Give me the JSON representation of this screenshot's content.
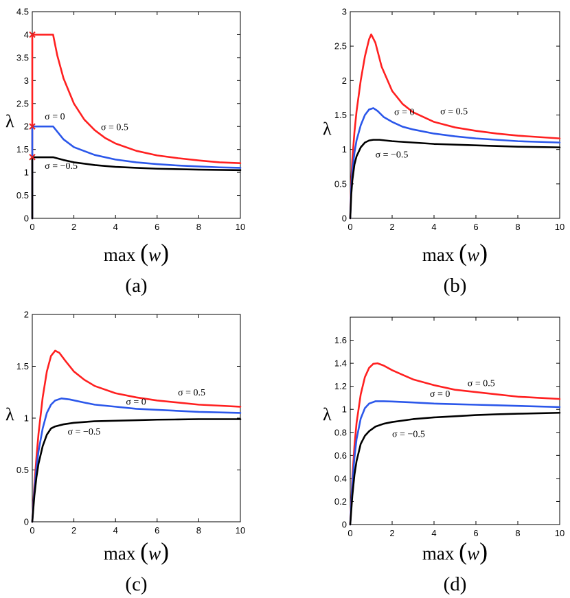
{
  "figure": {
    "xlabel_main": "max",
    "xlabel_var": "w",
    "xlabel_open": "(",
    "xlabel_close": ")",
    "ylabel": "λ"
  },
  "colors": {
    "sigma_pos": "#ff2020",
    "sigma_zero": "#2b57ea",
    "sigma_neg": "#000000",
    "marker": "#e82020"
  },
  "chart_data": [
    {
      "type": "line",
      "caption": "(a)",
      "xlabel": "max (w)",
      "ylabel": "λ",
      "xlim": [
        0,
        10
      ],
      "ylim": [
        0,
        4.5
      ],
      "xticks": [
        0,
        2,
        4,
        6,
        8,
        10
      ],
      "yticks": [
        0,
        0.5,
        1,
        1.5,
        2,
        2.5,
        3,
        3.5,
        4,
        4.5
      ],
      "ytick_labels": [
        "0",
        "0.5",
        "1",
        "1.5",
        "2",
        "2.5",
        "3",
        "3.5",
        "4",
        "4.5"
      ],
      "series": [
        {
          "name": "σ = 0.5",
          "color": "#ff2020",
          "x": [
            0,
            0,
            1,
            1.2,
            1.5,
            2,
            2.5,
            3,
            3.5,
            4,
            5,
            6,
            7,
            8,
            9,
            10
          ],
          "y": [
            0,
            4,
            4,
            3.55,
            3.05,
            2.5,
            2.15,
            1.92,
            1.75,
            1.63,
            1.47,
            1.37,
            1.31,
            1.26,
            1.22,
            1.2
          ]
        },
        {
          "name": "σ = 0",
          "color": "#2b57ea",
          "x": [
            0,
            0,
            1,
            1.5,
            2,
            3,
            4,
            5,
            6,
            7,
            8,
            9,
            10
          ],
          "y": [
            0,
            2,
            2,
            1.72,
            1.55,
            1.38,
            1.28,
            1.22,
            1.18,
            1.15,
            1.13,
            1.11,
            1.1
          ]
        },
        {
          "name": "σ = −0.5",
          "color": "#000000",
          "x": [
            0,
            0,
            1,
            1.5,
            2,
            3,
            4,
            5,
            6,
            8,
            10
          ],
          "y": [
            0,
            1.33,
            1.33,
            1.27,
            1.22,
            1.16,
            1.12,
            1.1,
            1.08,
            1.06,
            1.05
          ]
        }
      ],
      "markers": [
        {
          "x": 0,
          "y": 4
        },
        {
          "x": 0,
          "y": 2
        },
        {
          "x": 0,
          "y": 1.333
        }
      ],
      "annotations": [
        {
          "text": "σ = 0",
          "x": 0.6,
          "y": 2.15
        },
        {
          "text": "σ = 0.5",
          "x": 3.3,
          "y": 1.92
        },
        {
          "text": "σ = −0.5",
          "x": 0.6,
          "y": 1.08
        }
      ]
    },
    {
      "type": "line",
      "caption": "(b)",
      "xlabel": "max (w)",
      "ylabel": "λ",
      "xlim": [
        0,
        10
      ],
      "ylim": [
        0,
        3
      ],
      "xticks": [
        0,
        2,
        4,
        6,
        8,
        10
      ],
      "yticks": [
        0,
        0.5,
        1,
        1.5,
        2,
        2.5,
        3
      ],
      "ytick_labels": [
        "0",
        "0.5",
        "1",
        "1.5",
        "2",
        "2.5",
        "3"
      ],
      "series": [
        {
          "name": "σ = 0.5",
          "color": "#ff2020",
          "x": [
            0,
            0.05,
            0.1,
            0.2,
            0.3,
            0.5,
            0.7,
            0.9,
            1.0,
            1.2,
            1.5,
            2,
            2.5,
            3,
            4,
            5,
            6,
            7,
            8,
            9,
            10
          ],
          "y": [
            0,
            0.55,
            0.85,
            1.25,
            1.55,
            2.0,
            2.35,
            2.6,
            2.67,
            2.55,
            2.2,
            1.85,
            1.66,
            1.54,
            1.4,
            1.32,
            1.27,
            1.23,
            1.2,
            1.18,
            1.16
          ]
        },
        {
          "name": "σ = 0",
          "color": "#2b57ea",
          "x": [
            0,
            0.05,
            0.1,
            0.2,
            0.3,
            0.5,
            0.7,
            0.9,
            1.1,
            1.3,
            1.6,
            2,
            2.5,
            3,
            4,
            5,
            6,
            7,
            8,
            9,
            10
          ],
          "y": [
            0,
            0.45,
            0.68,
            0.95,
            1.13,
            1.35,
            1.5,
            1.58,
            1.6,
            1.56,
            1.47,
            1.4,
            1.33,
            1.29,
            1.23,
            1.19,
            1.16,
            1.14,
            1.12,
            1.11,
            1.1
          ]
        },
        {
          "name": "σ = −0.5",
          "color": "#000000",
          "x": [
            0,
            0.05,
            0.1,
            0.2,
            0.3,
            0.5,
            0.7,
            0.9,
            1.1,
            1.4,
            2,
            3,
            4,
            5,
            6,
            7,
            8,
            9,
            10
          ],
          "y": [
            0,
            0.35,
            0.55,
            0.78,
            0.9,
            1.03,
            1.1,
            1.13,
            1.14,
            1.14,
            1.12,
            1.1,
            1.08,
            1.07,
            1.06,
            1.05,
            1.04,
            1.035,
            1.03
          ]
        }
      ],
      "markers": [],
      "annotations": [
        {
          "text": "σ = 0",
          "x": 2.1,
          "y": 1.5
        },
        {
          "text": "σ = 0.5",
          "x": 4.3,
          "y": 1.51
        },
        {
          "text": "σ = −0.5",
          "x": 1.2,
          "y": 0.88
        }
      ]
    },
    {
      "type": "line",
      "caption": "(c)",
      "xlabel": "max (w)",
      "ylabel": "λ",
      "xlim": [
        0,
        10
      ],
      "ylim": [
        0,
        2
      ],
      "xticks": [
        0,
        2,
        4,
        6,
        8,
        10
      ],
      "yticks": [
        0,
        0.5,
        1,
        1.5,
        2
      ],
      "ytick_labels": [
        "0",
        "0.5",
        "1",
        "1.5",
        "2"
      ],
      "series": [
        {
          "name": "σ = 0.5",
          "color": "#ff2020",
          "x": [
            0,
            0.1,
            0.2,
            0.3,
            0.5,
            0.7,
            0.9,
            1.1,
            1.3,
            1.6,
            2,
            2.5,
            3,
            4,
            5,
            6,
            7,
            8,
            9,
            10
          ],
          "y": [
            0,
            0.35,
            0.62,
            0.85,
            1.2,
            1.45,
            1.6,
            1.65,
            1.63,
            1.55,
            1.45,
            1.37,
            1.31,
            1.24,
            1.2,
            1.17,
            1.15,
            1.13,
            1.12,
            1.11
          ]
        },
        {
          "name": "σ = 0",
          "color": "#2b57ea",
          "x": [
            0,
            0.1,
            0.2,
            0.3,
            0.5,
            0.7,
            0.9,
            1.1,
            1.4,
            1.8,
            2.5,
            3,
            4,
            5,
            6,
            7,
            8,
            9,
            10
          ],
          "y": [
            0,
            0.3,
            0.52,
            0.68,
            0.9,
            1.05,
            1.13,
            1.17,
            1.19,
            1.18,
            1.15,
            1.13,
            1.11,
            1.09,
            1.08,
            1.07,
            1.06,
            1.055,
            1.05
          ]
        },
        {
          "name": "σ = −0.5",
          "color": "#000000",
          "x": [
            0,
            0.1,
            0.2,
            0.3,
            0.5,
            0.7,
            0.9,
            1.1,
            1.5,
            2,
            3,
            4,
            5,
            6,
            7,
            8,
            9,
            10
          ],
          "y": [
            0,
            0.25,
            0.43,
            0.56,
            0.73,
            0.84,
            0.9,
            0.92,
            0.94,
            0.955,
            0.97,
            0.975,
            0.98,
            0.985,
            0.987,
            0.99,
            0.99,
            0.99
          ]
        }
      ],
      "markers": [],
      "annotations": [
        {
          "text": "σ = 0.5",
          "x": 7.0,
          "y": 1.22
        },
        {
          "text": "σ = 0",
          "x": 4.5,
          "y": 1.13
        },
        {
          "text": "σ = −0.5",
          "x": 1.7,
          "y": 0.84
        }
      ]
    },
    {
      "type": "line",
      "caption": "(d)",
      "xlabel": "max (w)",
      "ylabel": "λ",
      "xlim": [
        0,
        10
      ],
      "ylim": [
        0,
        1.8
      ],
      "xticks": [
        0,
        2,
        4,
        6,
        8,
        10
      ],
      "yticks": [
        0,
        0.2,
        0.4,
        0.6,
        0.8,
        1,
        1.2,
        1.4,
        1.6
      ],
      "ytick_labels": [
        "0",
        "0.2",
        "0.4",
        "0.6",
        "0.8",
        "1",
        "1.2",
        "1.4",
        "1.6"
      ],
      "series": [
        {
          "name": "σ = 0.5",
          "color": "#ff2020",
          "x": [
            0,
            0.1,
            0.2,
            0.3,
            0.5,
            0.7,
            0.9,
            1.1,
            1.3,
            1.6,
            2,
            2.5,
            3,
            4,
            5,
            6,
            7,
            8,
            9,
            10
          ],
          "y": [
            0,
            0.4,
            0.68,
            0.88,
            1.13,
            1.28,
            1.36,
            1.395,
            1.4,
            1.38,
            1.34,
            1.3,
            1.26,
            1.21,
            1.17,
            1.15,
            1.13,
            1.11,
            1.1,
            1.09
          ]
        },
        {
          "name": "σ = 0",
          "color": "#2b57ea",
          "x": [
            0,
            0.1,
            0.2,
            0.3,
            0.5,
            0.7,
            0.9,
            1.2,
            1.6,
            2,
            3,
            4,
            5,
            6,
            7,
            8,
            9,
            10
          ],
          "y": [
            0,
            0.35,
            0.58,
            0.74,
            0.92,
            1.01,
            1.05,
            1.07,
            1.07,
            1.068,
            1.06,
            1.05,
            1.045,
            1.04,
            1.035,
            1.03,
            1.025,
            1.02
          ]
        },
        {
          "name": "σ = −0.5",
          "color": "#000000",
          "x": [
            0,
            0.1,
            0.2,
            0.3,
            0.5,
            0.7,
            0.9,
            1.2,
            1.6,
            2,
            3,
            4,
            5,
            6,
            7,
            8,
            9,
            10
          ],
          "y": [
            0,
            0.25,
            0.43,
            0.55,
            0.7,
            0.77,
            0.81,
            0.85,
            0.875,
            0.89,
            0.915,
            0.93,
            0.94,
            0.95,
            0.957,
            0.962,
            0.966,
            0.97
          ]
        }
      ],
      "markers": [],
      "annotations": [
        {
          "text": "σ = 0.5",
          "x": 5.6,
          "y": 1.2
        },
        {
          "text": "σ = 0",
          "x": 3.8,
          "y": 1.11
        },
        {
          "text": "σ = −0.5",
          "x": 2.0,
          "y": 0.76
        }
      ]
    }
  ]
}
